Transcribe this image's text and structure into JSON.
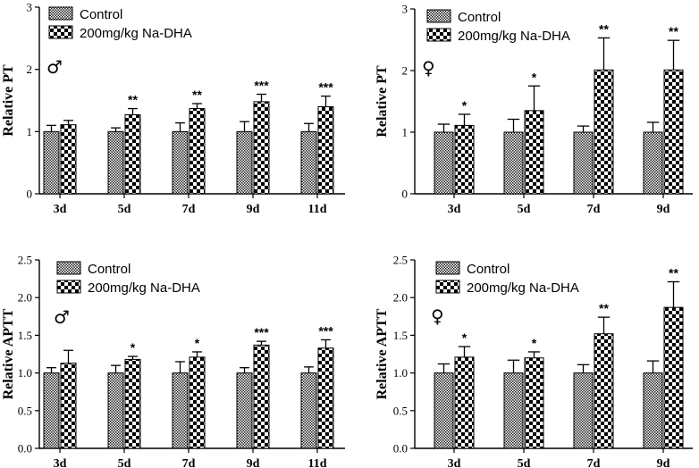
{
  "chart_data": [
    {
      "type": "bar",
      "panel": "male-pt",
      "sex_symbol": "♂",
      "ylabel": "Relative PT",
      "ylim": [
        0,
        3
      ],
      "yticks": [
        "0",
        "1",
        "2",
        "3"
      ],
      "yticks_values": [
        0,
        1,
        2,
        3
      ],
      "categories": [
        "3d",
        "5d",
        "7d",
        "9d",
        "11d"
      ],
      "legend": [
        "Control",
        "200mg/kg Na-DHA"
      ],
      "legend_position": "top-left",
      "series": [
        {
          "name": "Control",
          "values": [
            1.0,
            1.0,
            1.0,
            1.0,
            1.0
          ],
          "errors": [
            0.1,
            0.06,
            0.14,
            0.16,
            0.13
          ]
        },
        {
          "name": "200mg/kg Na-DHA",
          "values": [
            1.11,
            1.27,
            1.37,
            1.48,
            1.4
          ],
          "errors": [
            0.07,
            0.1,
            0.08,
            0.12,
            0.17
          ]
        }
      ],
      "significance": [
        "",
        "**",
        "**",
        "***",
        "***"
      ]
    },
    {
      "type": "bar",
      "panel": "female-pt",
      "sex_symbol": "♀",
      "ylabel": "Relative PT",
      "ylim": [
        0,
        3
      ],
      "yticks": [
        "0",
        "1",
        "2",
        "3"
      ],
      "yticks_values": [
        0,
        1,
        2,
        3
      ],
      "categories": [
        "3d",
        "5d",
        "7d",
        "9d"
      ],
      "legend": [
        "Control",
        "200mg/kg Na-DHA"
      ],
      "legend_position": "top-left",
      "series": [
        {
          "name": "Control",
          "values": [
            1.0,
            1.0,
            1.0,
            1.0
          ],
          "errors": [
            0.13,
            0.21,
            0.1,
            0.16
          ]
        },
        {
          "name": "200mg/kg Na-DHA",
          "values": [
            1.11,
            1.35,
            2.01,
            2.01
          ],
          "errors": [
            0.18,
            0.4,
            0.52,
            0.48
          ]
        }
      ],
      "significance": [
        "*",
        "*",
        "**",
        "**"
      ]
    },
    {
      "type": "bar",
      "panel": "male-aptt",
      "sex_symbol": "♂",
      "ylabel": "Relative APTT",
      "ylim": [
        0,
        2.5
      ],
      "yticks": [
        "0.0",
        "0.5",
        "1.0",
        "1.5",
        "2.0",
        "2.5"
      ],
      "yticks_values": [
        0,
        0.5,
        1.0,
        1.5,
        2.0,
        2.5
      ],
      "categories": [
        "3d",
        "5d",
        "7d",
        "9d",
        "11d"
      ],
      "legend": [
        "Control",
        "200mg/kg Na-DHA"
      ],
      "legend_position": "top-left",
      "series": [
        {
          "name": "Control",
          "values": [
            1.0,
            1.0,
            1.0,
            1.0,
            1.0
          ],
          "errors": [
            0.07,
            0.1,
            0.15,
            0.07,
            0.08
          ]
        },
        {
          "name": "200mg/kg Na-DHA",
          "values": [
            1.13,
            1.18,
            1.21,
            1.37,
            1.33
          ],
          "errors": [
            0.17,
            0.04,
            0.07,
            0.05,
            0.11
          ]
        }
      ],
      "significance": [
        "",
        "*",
        "*",
        "***",
        "***"
      ]
    },
    {
      "type": "bar",
      "panel": "female-aptt",
      "sex_symbol": "♀",
      "ylabel": "Relative APTT",
      "ylim": [
        0,
        2.5
      ],
      "yticks": [
        "0.0",
        "0.5",
        "1.0",
        "1.5",
        "2.0",
        "2.5"
      ],
      "yticks_values": [
        0,
        0.5,
        1.0,
        1.5,
        2.0,
        2.5
      ],
      "categories": [
        "3d",
        "5d",
        "7d",
        "9d"
      ],
      "legend": [
        "Control",
        "200mg/kg Na-DHA"
      ],
      "legend_position": "top-left",
      "series": [
        {
          "name": "Control",
          "values": [
            1.0,
            1.0,
            1.0,
            1.0
          ],
          "errors": [
            0.12,
            0.17,
            0.11,
            0.16
          ]
        },
        {
          "name": "200mg/kg Na-DHA",
          "values": [
            1.21,
            1.2,
            1.52,
            1.87
          ],
          "errors": [
            0.14,
            0.08,
            0.22,
            0.34
          ]
        }
      ],
      "significance": [
        "*",
        "*",
        "**",
        "**"
      ]
    }
  ]
}
